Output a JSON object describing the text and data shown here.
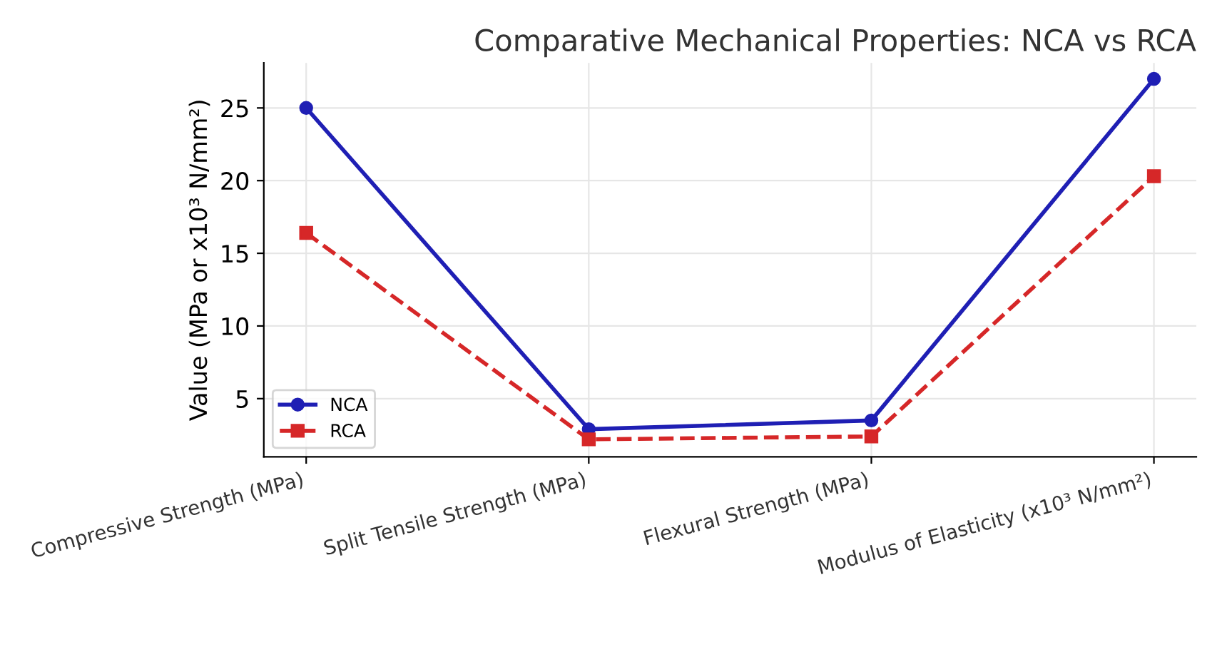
{
  "chart_data": {
    "type": "line",
    "title": "Comparative Mechanical Properties: NCA vs RCA",
    "ylabel": "Value (MPa or x10³ N/mm²)",
    "categories": [
      "Compressive Strength (MPa)",
      "Split Tensile Strength (MPa)",
      "Flexural Strength (MPa)",
      "Modulus of Elasticity (x10³ N/mm²)"
    ],
    "series": [
      {
        "name": "NCA",
        "color": "#1f1fb4",
        "values": [
          25,
          2.9,
          3.5,
          27
        ],
        "marker": "circle",
        "line_style": "solid"
      },
      {
        "name": "RCA",
        "color": "#d62728",
        "values": [
          16.4,
          2.2,
          2.4,
          20.3
        ],
        "marker": "square",
        "line_style": "dashed"
      }
    ],
    "ylim": [
      1.0,
      28.1
    ],
    "yticks": [
      5,
      10,
      15,
      20,
      25
    ],
    "grid": true,
    "legend": "bottom left"
  }
}
